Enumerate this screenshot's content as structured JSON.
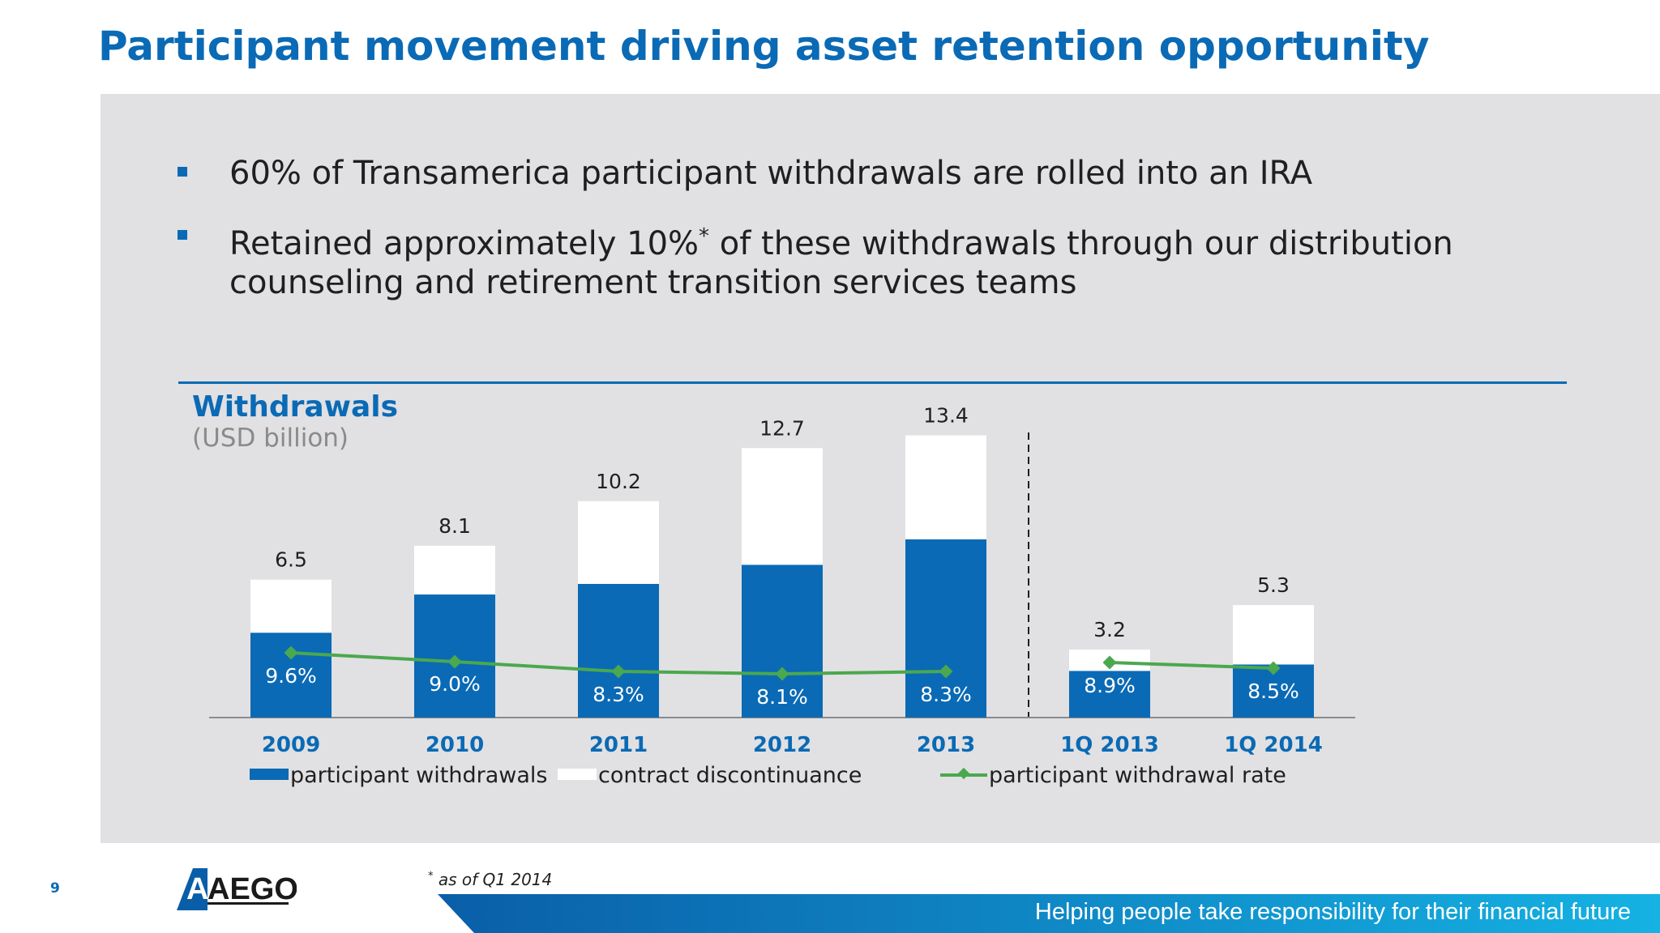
{
  "slide": {
    "title": "Participant movement driving asset retention opportunity",
    "bullets": [
      "60% of Transamerica participant withdrawals are rolled into an IRA",
      "Retained approximately 10%",
      " of these withdrawals through our distribution counseling and retirement transition services teams"
    ],
    "bullet_marker": "*",
    "page_number": "9",
    "logo_text": "AEGON",
    "footnote_marker": "*",
    "footnote": "as of Q1 2014",
    "tagline": "Helping people take responsibility for their financial future"
  },
  "colors": {
    "brand_blue": "#0a6ab5",
    "contract": "#ffffff",
    "rate_line": "#4aa84f",
    "panel": "#e1e0e2"
  },
  "chart_data": {
    "type": "bar",
    "stacked": true,
    "title": "Withdrawals",
    "subtitle": "(USD billion)",
    "categories": [
      "2009",
      "2010",
      "2011",
      "2012",
      "2013",
      "1Q 2013",
      "1Q 2014"
    ],
    "totals": [
      "6.5",
      "8.1",
      "10.2",
      "12.7",
      "13.4",
      "3.2",
      "5.3"
    ],
    "series": [
      {
        "name": "participant withdrawals",
        "color": "#0a6ab5",
        "values": [
          4.0,
          5.8,
          6.3,
          7.2,
          8.4,
          2.2,
          2.5
        ]
      },
      {
        "name": "contract discontinuance",
        "color": "#ffffff",
        "values": [
          2.5,
          2.3,
          3.9,
          5.5,
          4.9,
          1.0,
          2.8
        ]
      }
    ],
    "line_series": {
      "name": "participant withdrawal rate",
      "color": "#4aa84f",
      "labels": [
        "9.6%",
        "9.0%",
        "8.3%",
        "8.1%",
        "8.3%",
        "8.9%",
        "8.5%"
      ]
    },
    "separator_after": "2013",
    "ylim": [
      0,
      16
    ]
  }
}
